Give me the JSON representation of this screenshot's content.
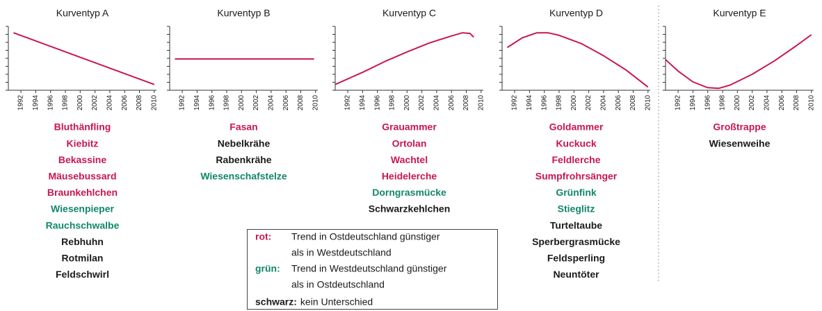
{
  "chart_data": [
    {
      "type": "line",
      "title": "Kurventyp A",
      "color": "#c8174f",
      "x": [
        1991,
        2010
      ],
      "values": [
        9.0,
        0.9
      ],
      "xlim": [
        1990.3,
        2010.3
      ],
      "ylim": [
        0,
        10
      ],
      "xticks": [
        1992,
        1994,
        1996,
        1998,
        2000,
        2002,
        2004,
        2006,
        2008,
        2010
      ],
      "species": [
        {
          "name": "Bluthänfling",
          "color": "#c8174f"
        },
        {
          "name": "Kiebitz",
          "color": "#c8174f"
        },
        {
          "name": "Bekassine",
          "color": "#c8174f"
        },
        {
          "name": "Mäusebussard",
          "color": "#c8174f"
        },
        {
          "name": "Braunkehlchen",
          "color": "#c8174f"
        },
        {
          "name": "Wiesenpieper",
          "color": "#12876a"
        },
        {
          "name": "Rauchschwalbe",
          "color": "#12876a"
        },
        {
          "name": "Rebhuhn",
          "color": "#1a1a1a"
        },
        {
          "name": "Rotmilan",
          "color": "#1a1a1a"
        },
        {
          "name": "Feldschwirl",
          "color": "#1a1a1a"
        }
      ]
    },
    {
      "type": "line",
      "title": "Kurventyp B",
      "color": "#c8174f",
      "x": [
        1991,
        2009.8
      ],
      "values": [
        4.9,
        4.9
      ],
      "xlim": [
        1990.3,
        2010.3
      ],
      "ylim": [
        0,
        10
      ],
      "xticks": [
        1992,
        1994,
        1996,
        1998,
        2000,
        2002,
        2004,
        2006,
        2008,
        2010
      ],
      "species": [
        {
          "name": "Fasan",
          "color": "#c8174f"
        },
        {
          "name": "Nebelkrähe",
          "color": "#1a1a1a"
        },
        {
          "name": "Rabenkrähe",
          "color": "#1a1a1a"
        },
        {
          "name": "Wiesenschafstelze",
          "color": "#12876a"
        }
      ]
    },
    {
      "type": "line",
      "title": "Kurventyp C",
      "color": "#c8174f",
      "x": [
        1990.3,
        1994,
        1997,
        2000,
        2003,
        2006,
        2007.5,
        2008.5,
        2009
      ],
      "values": [
        0.9,
        2.8,
        4.5,
        6.0,
        7.4,
        8.5,
        9.0,
        8.9,
        8.3
      ],
      "xlim": [
        1990.3,
        2010.3
      ],
      "ylim": [
        0,
        10
      ],
      "xticks": [
        1992,
        1994,
        1996,
        1998,
        2000,
        2002,
        2004,
        2006,
        2008,
        2010
      ],
      "species": [
        {
          "name": "Grauammer",
          "color": "#c8174f"
        },
        {
          "name": "Ortolan",
          "color": "#c8174f"
        },
        {
          "name": "Wachtel",
          "color": "#c8174f"
        },
        {
          "name": "Heidelerche",
          "color": "#c8174f"
        },
        {
          "name": "Dorngrasmücke",
          "color": "#12876a"
        },
        {
          "name": "Schwarzkehlchen",
          "color": "#1a1a1a"
        }
      ]
    },
    {
      "type": "line",
      "title": "Kurventyp D",
      "color": "#c8174f",
      "x": [
        1991,
        1993,
        1995,
        1996.5,
        1998,
        2001,
        2004,
        2007,
        2010
      ],
      "values": [
        6.7,
        8.2,
        9.0,
        9.0,
        8.6,
        7.3,
        5.4,
        3.2,
        0.5
      ],
      "xlim": [
        1990.3,
        2010.3
      ],
      "ylim": [
        0,
        10
      ],
      "xticks": [
        1992,
        1994,
        1996,
        1998,
        2000,
        2002,
        2004,
        2006,
        2008,
        2010
      ],
      "species": [
        {
          "name": "Goldammer",
          "color": "#c8174f"
        },
        {
          "name": "Kuckuck",
          "color": "#c8174f"
        },
        {
          "name": "Feldlerche",
          "color": "#c8174f"
        },
        {
          "name": "Sumpfrohrsänger",
          "color": "#c8174f"
        },
        {
          "name": "Grünfink",
          "color": "#12876a"
        },
        {
          "name": "Stieglitz",
          "color": "#12876a"
        },
        {
          "name": "Turteltaube",
          "color": "#1a1a1a"
        },
        {
          "name": "Sperbergrasmücke",
          "color": "#1a1a1a"
        },
        {
          "name": "Feldsperling",
          "color": "#1a1a1a"
        },
        {
          "name": "Neuntöter",
          "color": "#1a1a1a"
        }
      ]
    },
    {
      "type": "line",
      "title": "Kurventyp E",
      "color": "#c8174f",
      "x": [
        1990.3,
        1992,
        1994,
        1996,
        1997.5,
        1999,
        2002,
        2005,
        2008,
        2010
      ],
      "values": [
        4.8,
        3.0,
        1.3,
        0.4,
        0.3,
        0.8,
        2.5,
        4.6,
        7.0,
        8.7
      ],
      "xlim": [
        1990.3,
        2010.3
      ],
      "ylim": [
        0,
        10
      ],
      "xticks": [
        1992,
        1994,
        1996,
        1998,
        2000,
        2002,
        2004,
        2006,
        2008,
        2010
      ],
      "species": [
        {
          "name": "Großtrappe",
          "color": "#c8174f"
        },
        {
          "name": "Wiesenweihe",
          "color": "#1a1a1a"
        }
      ]
    }
  ],
  "legend": [
    {
      "key": "rot:",
      "color": "#c8174f",
      "text": [
        "Trend in Ostdeutschland günstiger",
        "als in Westdeutschland"
      ]
    },
    {
      "key": "grün:",
      "color": "#12876a",
      "text": [
        "Trend in Westdeutschland günstiger",
        "als in Ostdeutschland"
      ]
    },
    {
      "key": "schwarz:",
      "color": "#1a1a1a",
      "text": [
        "kein Unterschied"
      ]
    }
  ]
}
